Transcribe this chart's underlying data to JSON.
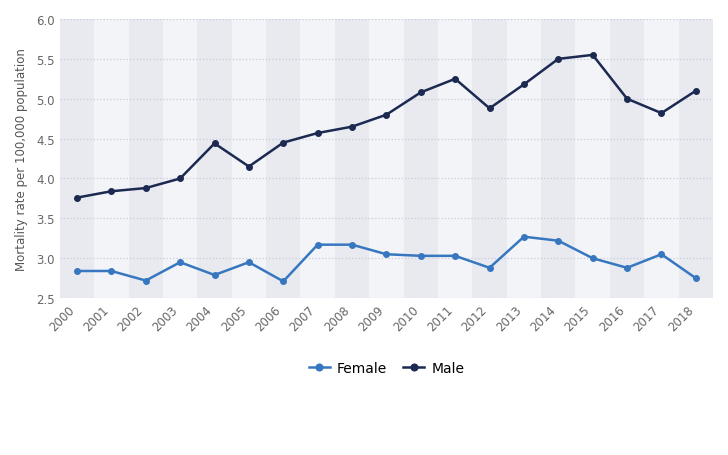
{
  "years": [
    2000,
    2001,
    2002,
    2003,
    2004,
    2005,
    2006,
    2007,
    2008,
    2009,
    2010,
    2011,
    2012,
    2013,
    2014,
    2015,
    2016,
    2017,
    2018
  ],
  "female": [
    2.84,
    2.84,
    2.72,
    2.95,
    2.79,
    2.95,
    2.71,
    3.17,
    3.17,
    3.05,
    3.03,
    3.03,
    2.88,
    3.27,
    3.22,
    3.0,
    2.88,
    3.05,
    2.75
  ],
  "male": [
    3.76,
    3.84,
    3.88,
    4.0,
    4.44,
    4.15,
    4.45,
    4.57,
    4.65,
    4.8,
    5.08,
    5.25,
    4.88,
    5.18,
    5.5,
    5.55,
    5.0,
    4.82,
    5.1
  ],
  "female_color": "#3777c0",
  "male_color": "#1c2951",
  "ylabel": "Mortality rate per 100,000 population",
  "ylim": [
    2.5,
    6.0
  ],
  "yticks": [
    2.5,
    3.0,
    3.5,
    4.0,
    4.5,
    5.0,
    5.5,
    6.0
  ],
  "background_color": "#ffffff",
  "plot_bg_color": "#ffffff",
  "band_color_dark": "#e8eaf0",
  "band_color_light": "#f2f4f8",
  "grid_color": "#c8ccd8",
  "legend_female": "Female",
  "legend_male": "Male",
  "marker_size": 4,
  "line_width": 1.8
}
